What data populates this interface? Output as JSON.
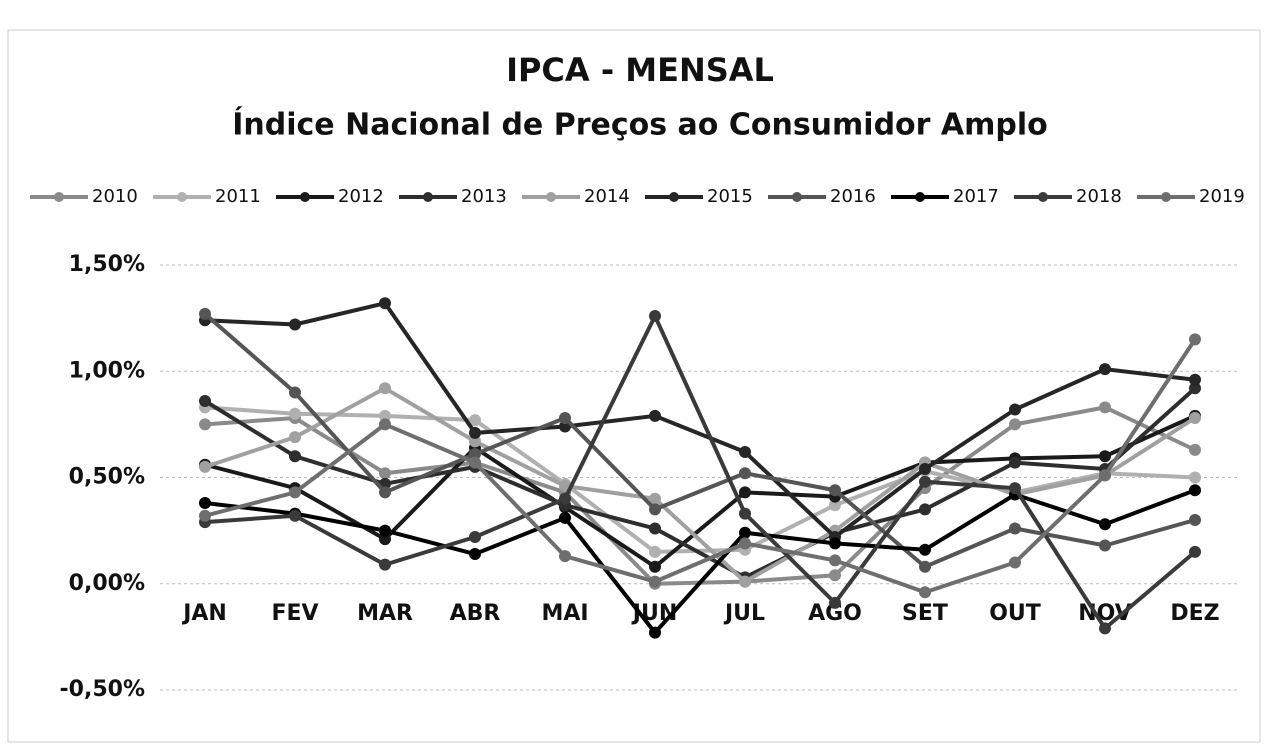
{
  "chart_data": {
    "type": "line",
    "title": "IPCA - MENSAL",
    "subtitle": "Índice Nacional de Preços ao Consumidor Amplo",
    "categories": [
      "JAN",
      "FEV",
      "MAR",
      "ABR",
      "MAI",
      "JUN",
      "JUL",
      "AGO",
      "SET",
      "OUT",
      "NOV",
      "DEZ"
    ],
    "series": [
      {
        "name": "2010",
        "color": "#8a8a8a",
        "values": [
          0.75,
          0.78,
          0.52,
          0.57,
          0.43,
          0.0,
          0.01,
          0.04,
          0.45,
          0.75,
          0.83,
          0.63
        ]
      },
      {
        "name": "2011",
        "color": "#b0b0b0",
        "values": [
          0.83,
          0.8,
          0.79,
          0.77,
          0.47,
          0.15,
          0.16,
          0.37,
          0.53,
          0.43,
          0.52,
          0.5
        ]
      },
      {
        "name": "2012",
        "color": "#1a1a1a",
        "values": [
          0.56,
          0.45,
          0.21,
          0.64,
          0.36,
          0.08,
          0.43,
          0.41,
          0.57,
          0.59,
          0.6,
          0.79
        ]
      },
      {
        "name": "2013",
        "color": "#2e2e2e",
        "values": [
          0.86,
          0.6,
          0.47,
          0.55,
          0.37,
          0.26,
          0.03,
          0.24,
          0.35,
          0.57,
          0.54,
          0.92
        ]
      },
      {
        "name": "2014",
        "color": "#a0a0a0",
        "values": [
          0.55,
          0.69,
          0.92,
          0.67,
          0.46,
          0.4,
          0.01,
          0.25,
          0.57,
          0.42,
          0.51,
          0.78
        ]
      },
      {
        "name": "2015",
        "color": "#262626",
        "values": [
          1.24,
          1.22,
          1.32,
          0.71,
          0.74,
          0.79,
          0.62,
          0.22,
          0.54,
          0.82,
          1.01,
          0.96
        ]
      },
      {
        "name": "2016",
        "color": "#555555",
        "values": [
          1.27,
          0.9,
          0.43,
          0.61,
          0.78,
          0.35,
          0.52,
          0.44,
          0.08,
          0.26,
          0.18,
          0.3
        ]
      },
      {
        "name": "2017",
        "color": "#000000",
        "values": [
          0.38,
          0.33,
          0.25,
          0.14,
          0.31,
          -0.23,
          0.24,
          0.19,
          0.16,
          0.42,
          0.28,
          0.44
        ]
      },
      {
        "name": "2018",
        "color": "#3a3a3a",
        "values": [
          0.29,
          0.32,
          0.09,
          0.22,
          0.4,
          1.26,
          0.33,
          -0.09,
          0.48,
          0.45,
          -0.21,
          0.15
        ]
      },
      {
        "name": "2019",
        "color": "#6e6e6e",
        "values": [
          0.32,
          0.43,
          0.75,
          0.57,
          0.13,
          0.01,
          0.19,
          0.11,
          -0.04,
          0.1,
          0.51,
          1.15
        ]
      }
    ],
    "ylim": [
      -0.5,
      1.5
    ],
    "yticks": [
      {
        "value": -0.5,
        "label": "-0,50%"
      },
      {
        "value": 0,
        "label": "0,00%"
      },
      {
        "value": 0.5,
        "label": "0,50%"
      },
      {
        "value": 1,
        "label": "1,00%"
      },
      {
        "value": 1.5,
        "label": "1,50%"
      }
    ],
    "grid": true,
    "legend": "top"
  }
}
